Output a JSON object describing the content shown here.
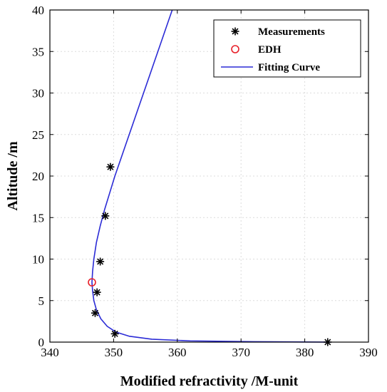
{
  "chart_data": {
    "type": "scatter",
    "xlabel": "Modified refractivity /M-unit",
    "ylabel": "Altitude /m",
    "xlim": [
      340,
      390
    ],
    "ylim": [
      0,
      40
    ],
    "xticks": [
      340,
      350,
      360,
      370,
      380,
      390
    ],
    "yticks": [
      0,
      5,
      10,
      15,
      20,
      25,
      30,
      35,
      40
    ],
    "x_tick_labels": [
      "340",
      "350",
      "360",
      "370",
      "380",
      "390"
    ],
    "y_tick_labels": [
      "0",
      "5",
      "10",
      "15",
      "20",
      "25",
      "30",
      "35",
      "40"
    ],
    "grid": true,
    "legend_position": "top-right",
    "series": [
      {
        "name": "Measurements",
        "marker": "asterisk",
        "color": "#000000",
        "points": [
          {
            "x": 383.6,
            "y": 0.0
          },
          {
            "x": 350.2,
            "y": 1.0
          },
          {
            "x": 347.1,
            "y": 3.5
          },
          {
            "x": 347.4,
            "y": 6.0
          },
          {
            "x": 347.9,
            "y": 9.7
          },
          {
            "x": 348.7,
            "y": 15.2
          },
          {
            "x": 349.5,
            "y": 21.1
          }
        ]
      },
      {
        "name": "EDH",
        "marker": "circle",
        "color": "#e8202a",
        "points": [
          {
            "x": 346.6,
            "y": 7.2
          }
        ]
      },
      {
        "name": "Fitting Curve",
        "marker": "line",
        "color": "#2b2bd6",
        "points": [
          {
            "x": 384.0,
            "y": 0.0
          },
          {
            "x": 372.0,
            "y": 0.05
          },
          {
            "x": 362.0,
            "y": 0.15
          },
          {
            "x": 356.0,
            "y": 0.35
          },
          {
            "x": 352.5,
            "y": 0.7
          },
          {
            "x": 350.4,
            "y": 1.2
          },
          {
            "x": 349.0,
            "y": 1.9
          },
          {
            "x": 348.0,
            "y": 2.8
          },
          {
            "x": 347.3,
            "y": 3.9
          },
          {
            "x": 346.9,
            "y": 5.0
          },
          {
            "x": 346.7,
            "y": 6.2
          },
          {
            "x": 346.6,
            "y": 7.2
          },
          {
            "x": 346.7,
            "y": 8.5
          },
          {
            "x": 346.9,
            "y": 10.0
          },
          {
            "x": 347.3,
            "y": 12.0
          },
          {
            "x": 347.9,
            "y": 14.0
          },
          {
            "x": 348.6,
            "y": 16.0
          },
          {
            "x": 349.4,
            "y": 18.0
          },
          {
            "x": 350.2,
            "y": 20.0
          },
          {
            "x": 351.1,
            "y": 22.0
          },
          {
            "x": 352.0,
            "y": 24.0
          },
          {
            "x": 352.9,
            "y": 26.0
          },
          {
            "x": 353.8,
            "y": 28.0
          },
          {
            "x": 354.7,
            "y": 30.0
          },
          {
            "x": 355.6,
            "y": 32.0
          },
          {
            "x": 356.5,
            "y": 34.0
          },
          {
            "x": 357.4,
            "y": 36.0
          },
          {
            "x": 358.3,
            "y": 38.0
          },
          {
            "x": 359.2,
            "y": 40.0
          }
        ]
      }
    ]
  }
}
